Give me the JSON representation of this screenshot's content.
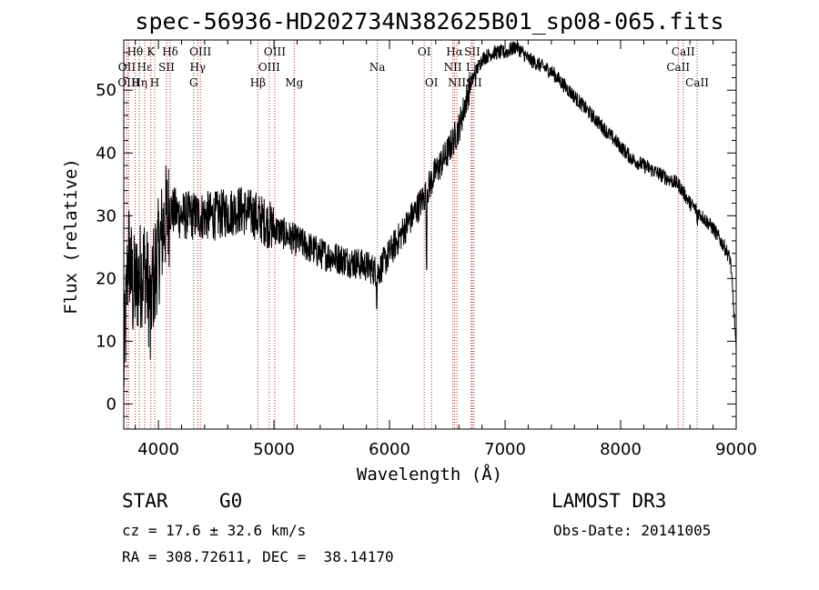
{
  "chart_data": {
    "type": "line",
    "title": "spec-56936-HD202734N382625B01_sp08-065.fits",
    "xlabel": "Wavelength (Å)",
    "ylabel": "Flux (relative)",
    "xlim": [
      3700,
      9000
    ],
    "ylim": [
      -4,
      58
    ],
    "xticks": [
      4000,
      5000,
      6000,
      7000,
      8000,
      9000
    ],
    "yticks": [
      0,
      10,
      20,
      30,
      40,
      50
    ],
    "spectrum_anchors": [
      {
        "x": 3700,
        "y": 5
      },
      {
        "x": 3740,
        "y": 25
      },
      {
        "x": 3780,
        "y": 18
      },
      {
        "x": 3830,
        "y": 20
      },
      {
        "x": 3880,
        "y": 22
      },
      {
        "x": 3930,
        "y": 16
      },
      {
        "x": 3970,
        "y": 22
      },
      {
        "x": 4000,
        "y": 24
      },
      {
        "x": 4050,
        "y": 29
      },
      {
        "x": 4100,
        "y": 31
      },
      {
        "x": 4200,
        "y": 30
      },
      {
        "x": 4300,
        "y": 30
      },
      {
        "x": 4500,
        "y": 30
      },
      {
        "x": 4700,
        "y": 31
      },
      {
        "x": 4850,
        "y": 30
      },
      {
        "x": 5000,
        "y": 28
      },
      {
        "x": 5200,
        "y": 26
      },
      {
        "x": 5400,
        "y": 24
      },
      {
        "x": 5600,
        "y": 23
      },
      {
        "x": 5800,
        "y": 22
      },
      {
        "x": 5900,
        "y": 21
      },
      {
        "x": 6000,
        "y": 24
      },
      {
        "x": 6100,
        "y": 27
      },
      {
        "x": 6200,
        "y": 30
      },
      {
        "x": 6300,
        "y": 33
      },
      {
        "x": 6400,
        "y": 37
      },
      {
        "x": 6500,
        "y": 40
      },
      {
        "x": 6600,
        "y": 44
      },
      {
        "x": 6700,
        "y": 51
      },
      {
        "x": 6800,
        "y": 55
      },
      {
        "x": 6900,
        "y": 56
      },
      {
        "x": 7000,
        "y": 56
      },
      {
        "x": 7100,
        "y": 57
      },
      {
        "x": 7200,
        "y": 55
      },
      {
        "x": 7300,
        "y": 54
      },
      {
        "x": 7400,
        "y": 53
      },
      {
        "x": 7500,
        "y": 51
      },
      {
        "x": 7600,
        "y": 49
      },
      {
        "x": 7700,
        "y": 47
      },
      {
        "x": 7800,
        "y": 45
      },
      {
        "x": 7900,
        "y": 43
      },
      {
        "x": 8000,
        "y": 41
      },
      {
        "x": 8100,
        "y": 39
      },
      {
        "x": 8200,
        "y": 38
      },
      {
        "x": 8300,
        "y": 37
      },
      {
        "x": 8400,
        "y": 36
      },
      {
        "x": 8500,
        "y": 35
      },
      {
        "x": 8600,
        "y": 32
      },
      {
        "x": 8700,
        "y": 30
      },
      {
        "x": 8800,
        "y": 28
      },
      {
        "x": 8900,
        "y": 25
      },
      {
        "x": 8950,
        "y": 23
      },
      {
        "x": 8990,
        "y": 12
      },
      {
        "x": 9000,
        "y": 8
      }
    ],
    "absorption_features": [
      {
        "x": 5890,
        "depth": 4
      },
      {
        "x": 6320,
        "depth": 12
      },
      {
        "x": 3933,
        "depth": 5
      },
      {
        "x": 3968,
        "depth": 5
      },
      {
        "x": 4861,
        "depth": 2
      },
      {
        "x": 8662,
        "depth": 2
      }
    ],
    "line_markers": [
      {
        "label": "Hθ",
        "x": 3798,
        "row": 1
      },
      {
        "label": "OII",
        "x": 3727,
        "row": 2
      },
      {
        "label": "OIII",
        "x": 3743,
        "row": 3
      },
      {
        "label": "K",
        "x": 3934,
        "row": 1
      },
      {
        "label": "Hε",
        "x": 3880,
        "row": 2
      },
      {
        "label": "Hη",
        "x": 3835,
        "row": 3
      },
      {
        "label": "SII",
        "x": 4070,
        "row": 2
      },
      {
        "label": "H",
        "x": 3968,
        "row": 3
      },
      {
        "label": "Hδ",
        "x": 4102,
        "row": 1
      },
      {
        "label": "OIII",
        "x": 4363,
        "row": 1
      },
      {
        "label": "Hγ",
        "x": 4340,
        "row": 2
      },
      {
        "label": "G",
        "x": 4305,
        "row": 3
      },
      {
        "label": "OIII",
        "x": 5007,
        "row": 1
      },
      {
        "label": "OIII",
        "x": 4959,
        "row": 2
      },
      {
        "label": "Hβ",
        "x": 4861,
        "row": 3
      },
      {
        "label": "Mg",
        "x": 5175,
        "row": 3
      },
      {
        "label": "Na",
        "x": 5894,
        "row": 2
      },
      {
        "label": "OI",
        "x": 6300,
        "row": 1
      },
      {
        "label": "OI",
        "x": 6363,
        "row": 3
      },
      {
        "label": "Hα",
        "x": 6563,
        "row": 1
      },
      {
        "label": "SII",
        "x": 6716,
        "row": 1
      },
      {
        "label": "NII",
        "x": 6548,
        "row": 2
      },
      {
        "label": "Li",
        "x": 6708,
        "row": 2
      },
      {
        "label": "NII",
        "x": 6583,
        "row": 3
      },
      {
        "label": "SII",
        "x": 6731,
        "row": 3
      },
      {
        "label": "CaII",
        "x": 8542,
        "row": 1
      },
      {
        "label": "CaII",
        "x": 8498,
        "row": 2
      },
      {
        "label": "CaII",
        "x": 8662,
        "row": 3
      }
    ]
  },
  "info": {
    "class_label": "STAR",
    "subclass": "G0",
    "survey": "LAMOST DR3",
    "redshift_line": "cz = 17.6 ± 32.6 km/s",
    "obs_date_line": "Obs-Date: 20141005",
    "coords_line": "RA = 308.72611, DEC =  38.14170"
  },
  "colors": {
    "spectrum": "#000000",
    "marker_line": "#b22222",
    "background": "#ffffff"
  }
}
